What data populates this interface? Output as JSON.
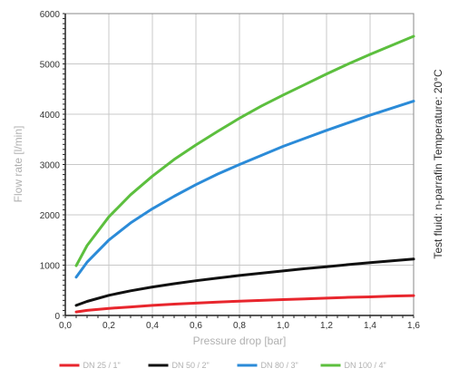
{
  "chart_data": {
    "type": "line",
    "title": "",
    "xlabel": "Pressure drop [bar]",
    "ylabel": "Flow rate [l/min]",
    "xlim": [
      0,
      1.6
    ],
    "ylim": [
      0,
      6000
    ],
    "xticks": [
      0,
      0.2,
      0.4,
      0.6,
      0.8,
      1.0,
      1.2,
      1.4,
      1.6
    ],
    "xtick_labels": [
      "0,0",
      "0,2",
      "0,4",
      "0,6",
      "0,8",
      "1,0",
      "1,2",
      "1,4",
      "1,6"
    ],
    "yticks": [
      0,
      1000,
      2000,
      3000,
      4000,
      5000,
      6000
    ],
    "ytick_labels": [
      "0",
      "1000",
      "2000",
      "3000",
      "4000",
      "5000",
      "6000"
    ],
    "grid": true,
    "legend_position": "bottom",
    "side_note": "Test fluid: n-parrafin   Temperature: 20°C",
    "x": [
      0.05,
      0.1,
      0.2,
      0.3,
      0.4,
      0.5,
      0.6,
      0.7,
      0.8,
      0.9,
      1.0,
      1.1,
      1.2,
      1.3,
      1.4,
      1.5,
      1.6
    ],
    "series": [
      {
        "name": "DN 25 / 1\"",
        "color": "#e8262d",
        "values": [
          70,
          100,
          140,
          170,
          200,
          225,
          245,
          265,
          285,
          300,
          315,
          330,
          345,
          360,
          370,
          385,
          395
        ]
      },
      {
        "name": "DN 50 / 2\"",
        "color": "#111111",
        "values": [
          200,
          280,
          400,
          490,
          565,
          630,
          690,
          745,
          795,
          840,
          885,
          930,
          970,
          1010,
          1050,
          1085,
          1120
        ]
      },
      {
        "name": "DN 80 / 3\"",
        "color": "#2b8bd8",
        "values": [
          760,
          1060,
          1500,
          1840,
          2120,
          2370,
          2600,
          2810,
          3000,
          3180,
          3360,
          3520,
          3680,
          3830,
          3980,
          4120,
          4260
        ]
      },
      {
        "name": "DN 100 / 4\"",
        "color": "#5cbf3e",
        "values": [
          990,
          1390,
          1960,
          2400,
          2770,
          3100,
          3390,
          3660,
          3920,
          4160,
          4380,
          4590,
          4800,
          5000,
          5190,
          5370,
          5550
        ]
      }
    ]
  }
}
